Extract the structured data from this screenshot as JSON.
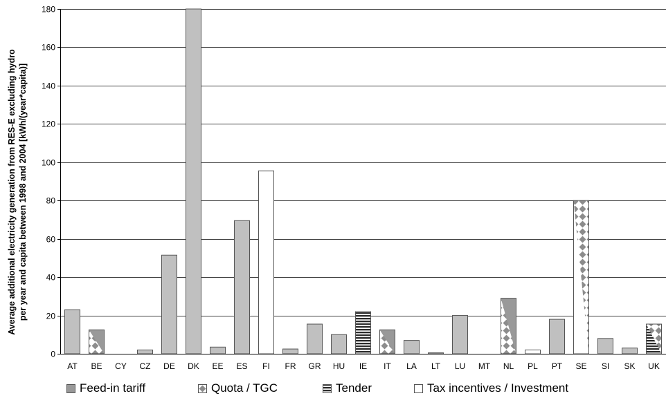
{
  "chart_data": {
    "type": "bar",
    "ylabel_lines": [
      "Average additional electricity generation from RES-E excluding hydro",
      "per year and capita between 1998 and 2004 [kWh/(year*capita)]"
    ],
    "xlabel": "",
    "ylim": [
      0,
      180
    ],
    "yticks": [
      0,
      20,
      40,
      60,
      80,
      100,
      120,
      140,
      160,
      180
    ],
    "grid": true,
    "legend_position": "bottom",
    "categories": [
      "AT",
      "BE",
      "CY",
      "CZ",
      "DE",
      "DK",
      "EE",
      "ES",
      "FI",
      "FR",
      "GR",
      "HU",
      "IE",
      "IT",
      "LA",
      "LT",
      "LU",
      "MT",
      "NL",
      "PL",
      "PT",
      "SE",
      "SI",
      "SK",
      "UK"
    ],
    "values": [
      23,
      12.5,
      0,
      2,
      51.5,
      180,
      3.5,
      69.5,
      95.5,
      2.5,
      15.5,
      10,
      22,
      12.5,
      7,
      0.5,
      20,
      0,
      29,
      2,
      18,
      80,
      8,
      3,
      15.5
    ],
    "instruments": [
      "feed-in",
      "quota",
      "feed-in",
      "feed-in",
      "feed-in",
      "feed-in",
      "feed-in",
      "feed-in",
      "tax",
      "feed-in",
      "feed-in",
      "feed-in",
      "tender",
      "quota",
      "feed-in",
      "feed-in",
      "feed-in",
      "feed-in",
      "quota",
      "tax",
      "feed-in",
      "quota-tax",
      "feed-in",
      "feed-in",
      "tender-quota"
    ],
    "series": [
      {
        "key": "feed-in",
        "name": "Feed-in tariff",
        "color": "#a0a0a0"
      },
      {
        "key": "quota",
        "name": "Quota / TGC",
        "color": "#8c8c8c"
      },
      {
        "key": "tender",
        "name": "Tender",
        "color": "#555555"
      },
      {
        "key": "tax",
        "name": "Tax incentives / Investment",
        "color": "#ffffff"
      }
    ],
    "colors": {
      "bar_light": "#c0c0c0",
      "bar_dark": "#999999",
      "diamond": "#8c8c8c",
      "grid": "#000000",
      "stroke": "#555555"
    }
  }
}
